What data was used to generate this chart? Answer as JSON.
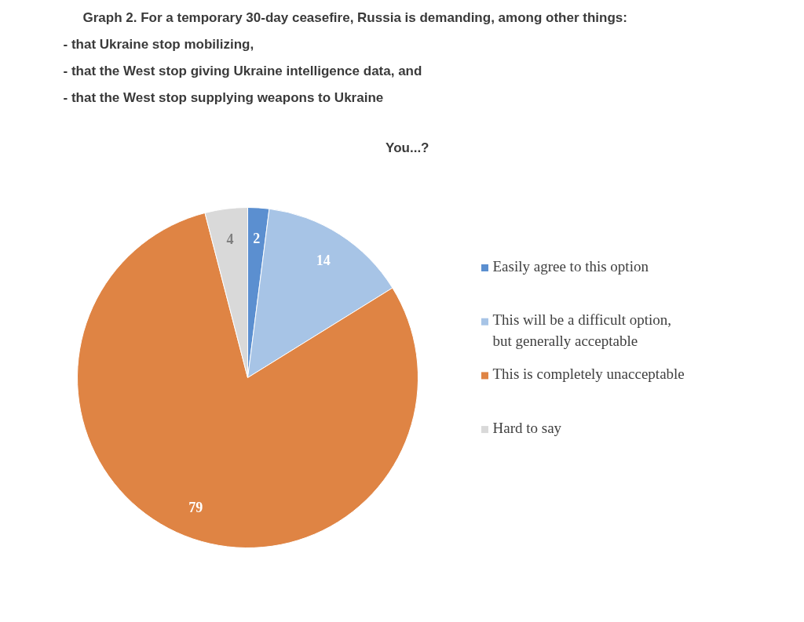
{
  "chart_data": {
    "type": "pie",
    "title": "Graph 2. For a temporary 30-day ceasefire, Russia is demanding, among other things:\n- that Ukraine stop mobilizing,\n- that the West stop giving Ukraine intelligence data, and\n- that the West stop supplying weapons to Ukraine",
    "subtitle": "You...?",
    "categories": [
      "Easily agree to this option",
      "This will be a difficult option, but generally acceptable",
      "This is completely unacceptable",
      "Hard to say"
    ],
    "values": [
      2,
      14,
      79,
      4
    ],
    "colors": [
      "#5b8fd0",
      "#a7c4e6",
      "#df8444",
      "#d9d9d9"
    ],
    "data_labels": true,
    "legend": "right"
  }
}
